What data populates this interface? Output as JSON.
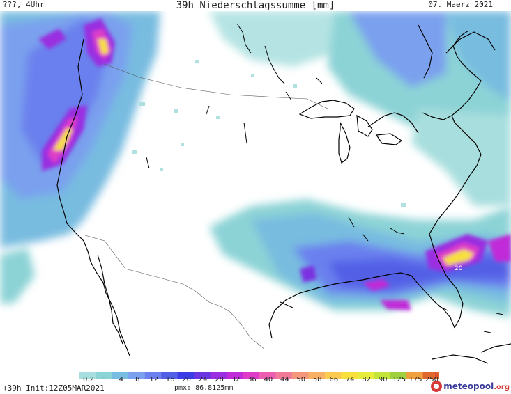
{
  "header": {
    "left": "???, 4Uhr",
    "title": "39h Niederschlagssumme [mm]",
    "date": "07. Maerz 2021"
  },
  "map": {
    "value_label": "20"
  },
  "legend": {
    "ticks": [
      "0.2",
      "1",
      "4",
      "8",
      "12",
      "16",
      "20",
      "24",
      "28",
      "32",
      "36",
      "40",
      "44",
      "50",
      "58",
      "66",
      "74",
      "82",
      "90",
      "125",
      "175",
      "250"
    ],
    "colors": [
      "#a8dede",
      "#8cd3d6",
      "#78bce0",
      "#7aa0ee",
      "#6b80ee",
      "#5360e6",
      "#3c3ce6",
      "#6a34e0",
      "#9a2ee0",
      "#c02cd8",
      "#de3cc8",
      "#ec5cb0",
      "#f07a98",
      "#f4967c",
      "#f8b064",
      "#fbca50",
      "#f8df3c",
      "#e6ec3a",
      "#c4e43a",
      "#9ed040",
      "#f0a03c",
      "#e0682c"
    ]
  },
  "footer": {
    "init": "+39h Init:12Z05MAR2021",
    "pmx": "pmx: 86.8125mm",
    "logo_main": "meteopool",
    "logo_suffix": ".org"
  }
}
